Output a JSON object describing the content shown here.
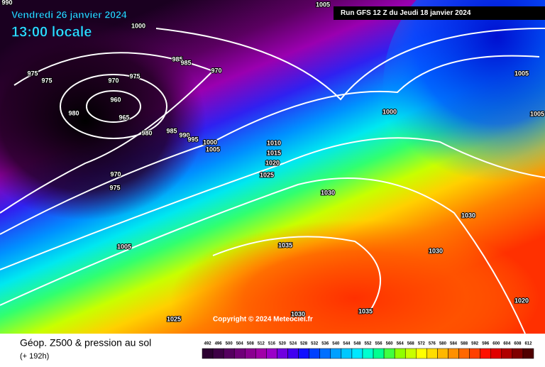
{
  "header": {
    "date": "Vendredi 26 janvier 2024",
    "time": "13:00 locale",
    "run": "Run GFS 12 Z du Jeudi 18 janvier 2024"
  },
  "copyright": "Copyright © 2024 Meteociel.fr",
  "footer": {
    "title": "Géop. Z500 & pression au sol",
    "lead": "(+ 192h)"
  },
  "isobars": [
    "1005",
    "1000",
    "990",
    "975",
    "975",
    "980",
    "970",
    "960",
    "965",
    "975",
    "985",
    "985",
    "970",
    "980",
    "985",
    "990",
    "995",
    "1000",
    "1005",
    "970",
    "975",
    "1005",
    "1010",
    "1015",
    "1020",
    "1025",
    "1030",
    "1035",
    "1030",
    "1030",
    "1000",
    "1005",
    "1005",
    "1020",
    "1035",
    "1030",
    "1025"
  ],
  "colorbar": {
    "ticks": [
      492,
      496,
      500,
      504,
      508,
      512,
      516,
      520,
      524,
      528,
      532,
      536,
      540,
      544,
      548,
      552,
      556,
      560,
      564,
      568,
      572,
      576,
      580,
      584,
      588,
      592,
      596,
      600,
      604,
      608,
      612
    ],
    "colors": [
      "#2b0030",
      "#3d0045",
      "#55005f",
      "#6f0078",
      "#8a0090",
      "#a000a8",
      "#9a00c8",
      "#7000e0",
      "#4000f0",
      "#1010ff",
      "#0040ff",
      "#0070ff",
      "#00a0ff",
      "#00c8ff",
      "#00e8ff",
      "#00ffd0",
      "#00ff90",
      "#40ff40",
      "#90ff00",
      "#c8ff00",
      "#ffff00",
      "#ffdd00",
      "#ffb800",
      "#ff9000",
      "#ff6800",
      "#ff4000",
      "#ff1000",
      "#e00000",
      "#b00000",
      "#800000",
      "#500000"
    ]
  }
}
